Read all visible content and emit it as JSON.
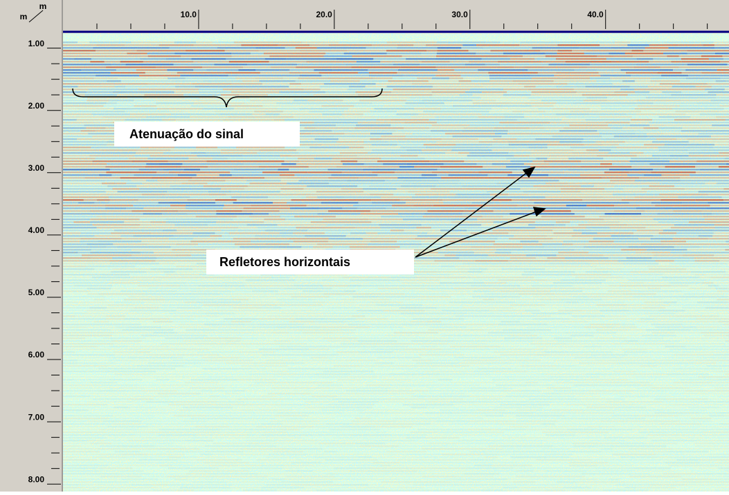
{
  "chart_data": {
    "type": "radargram",
    "x_unit": "m",
    "y_unit": "m",
    "xlim": [
      0,
      49.1
    ],
    "ylim": [
      0.76,
      8.12
    ],
    "xticks": [
      {
        "value": 10,
        "label": "10.0"
      },
      {
        "value": 20,
        "label": "20.0"
      },
      {
        "value": 30,
        "label": "30.0"
      },
      {
        "value": 40,
        "label": "40.0"
      }
    ],
    "xminorticks": [
      2.5,
      5,
      7.5,
      12.5,
      15,
      17.5,
      22.5,
      25,
      27.5,
      32.5,
      35,
      37.5,
      42.5,
      45,
      47.5
    ],
    "yticks": [
      {
        "value": 1,
        "label": "1.00"
      },
      {
        "value": 2,
        "label": "2.00"
      },
      {
        "value": 3,
        "label": "3.00"
      },
      {
        "value": 4,
        "label": "4.00"
      },
      {
        "value": 5,
        "label": "5.00"
      },
      {
        "value": 6,
        "label": "6.00"
      },
      {
        "value": 7,
        "label": "7.00"
      },
      {
        "value": 8,
        "label": "8.00"
      }
    ],
    "yminorticks": [
      1.25,
      1.5,
      1.75,
      2.25,
      2.5,
      2.75,
      3.25,
      3.5,
      3.75,
      4.25,
      4.5,
      4.75,
      5.25,
      5.5,
      5.75,
      6.25,
      6.5,
      6.75,
      7.25,
      7.5,
      7.75
    ],
    "annotations": [
      "Atenuação do sinal",
      "Refletores horizontais"
    ]
  }
}
